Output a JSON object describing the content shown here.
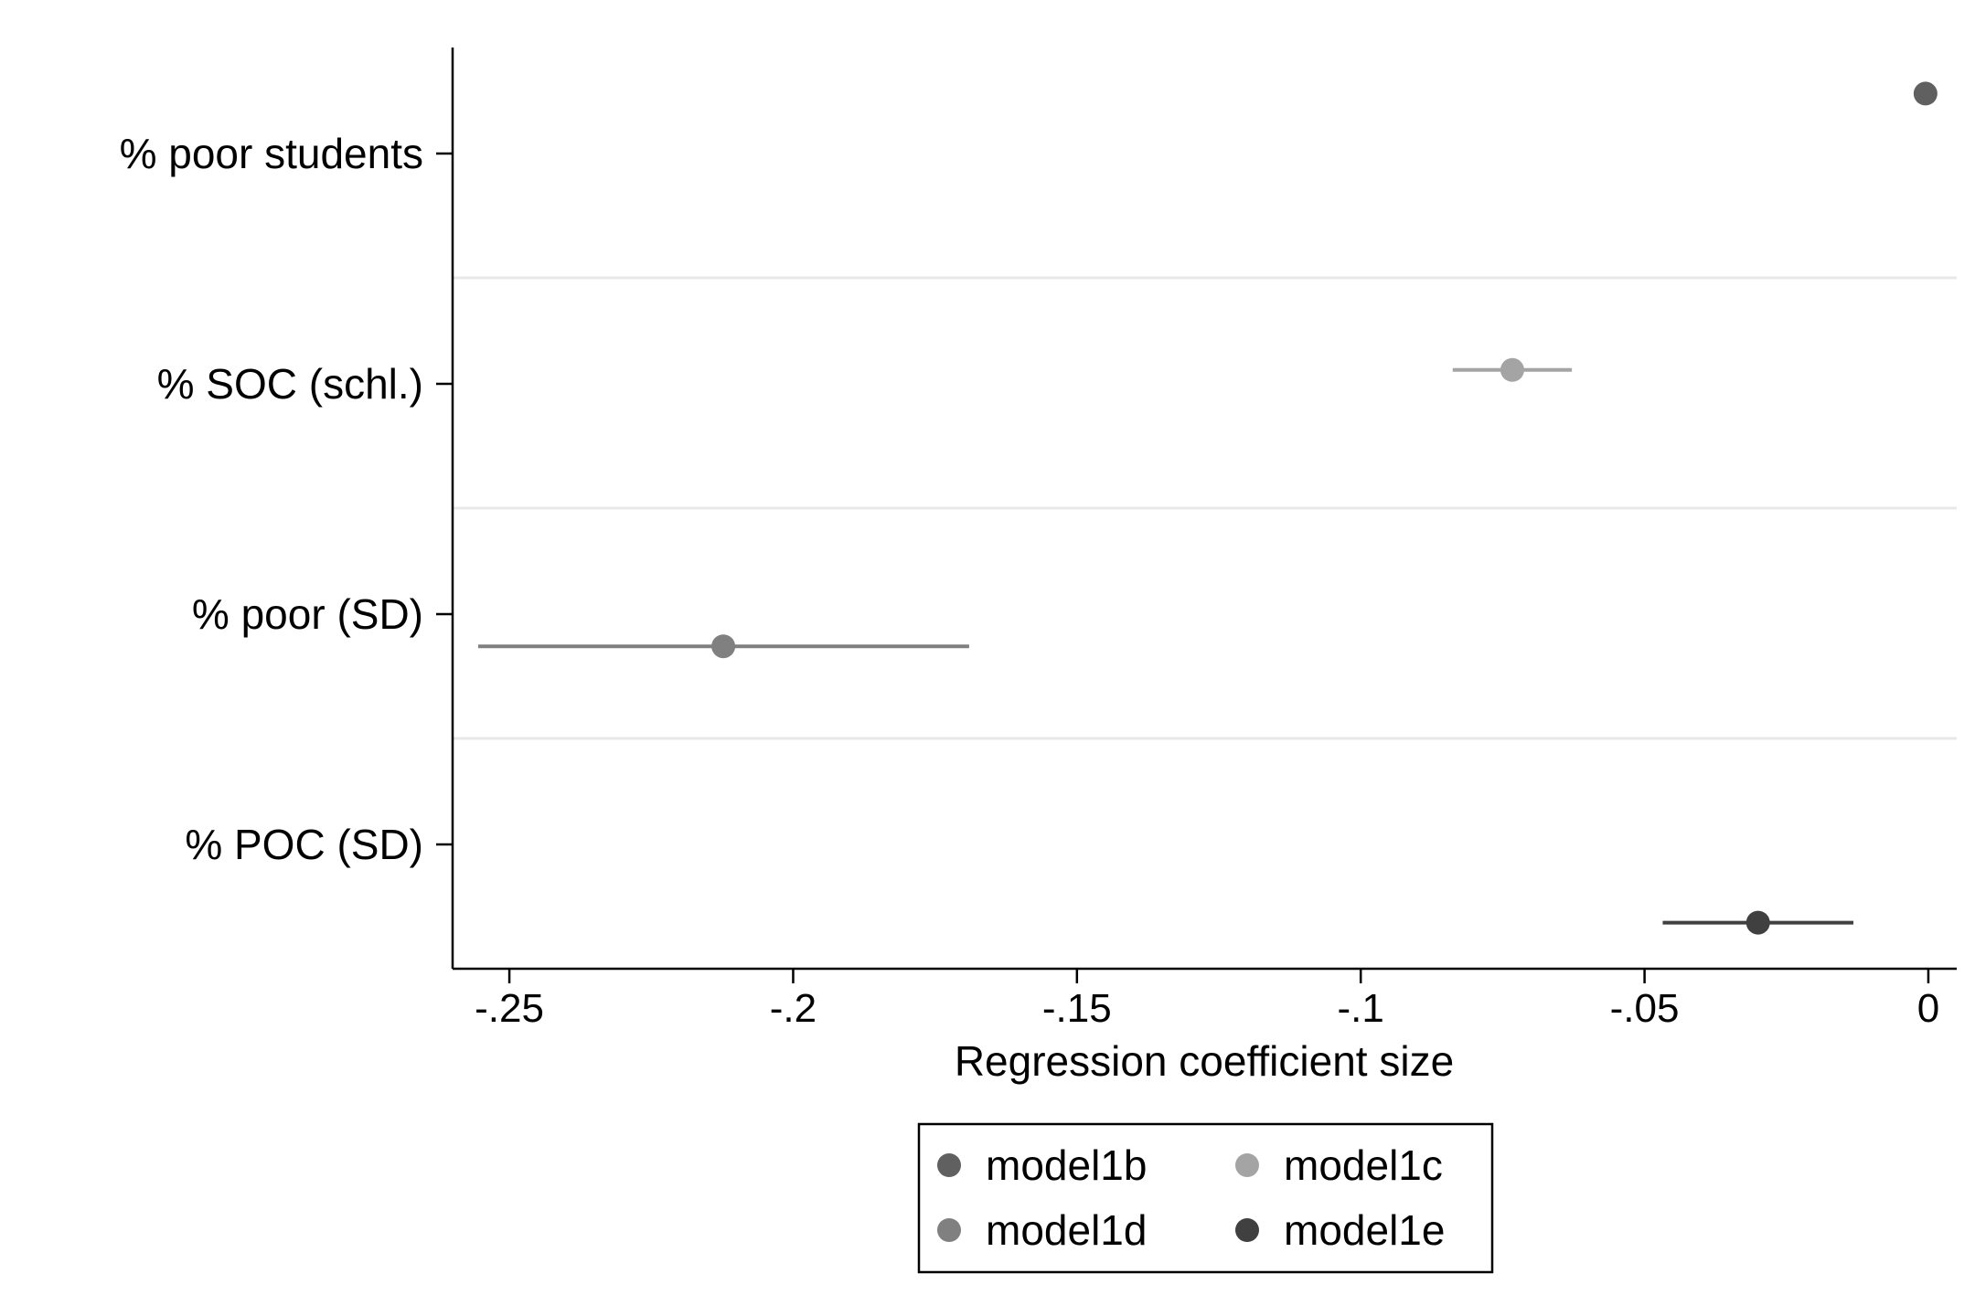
{
  "chart_data": {
    "type": "scatter",
    "subtype": "coefficient-plot",
    "title": "",
    "xlabel": "Regression coefficient size",
    "ylabel": "",
    "xlim": [
      -0.26,
      0.005
    ],
    "x_ticks": [
      -0.25,
      -0.2,
      -0.15,
      -0.1,
      -0.05,
      0
    ],
    "x_tick_labels": [
      "-.25",
      "-.2",
      "-.15",
      "-.1",
      "-.05",
      "0"
    ],
    "categories": [
      "% poor students",
      "% SOC (schl.)",
      "% poor (SD)",
      "% POC (SD)"
    ],
    "grid": "horizontal separators between categories",
    "legend_position": "bottom-center",
    "series": [
      {
        "name": "model1b",
        "color": "#606060",
        "category": "% poor students",
        "estimate": -0.0005,
        "ci": [
          -0.0008,
          -0.0002
        ]
      },
      {
        "name": "model1c",
        "color": "#a4a4a4",
        "category": "% SOC (schl.)",
        "estimate": -0.0733,
        "ci": [
          -0.0838,
          -0.0628
        ]
      },
      {
        "name": "model1d",
        "color": "#808080",
        "category": "% poor (SD)",
        "estimate": -0.2123,
        "ci": [
          -0.2555,
          -0.169
        ]
      },
      {
        "name": "model1e",
        "color": "#404040",
        "category": "% POC (SD)",
        "estimate": -0.03,
        "ci": [
          -0.0468,
          -0.0132
        ]
      }
    ]
  }
}
